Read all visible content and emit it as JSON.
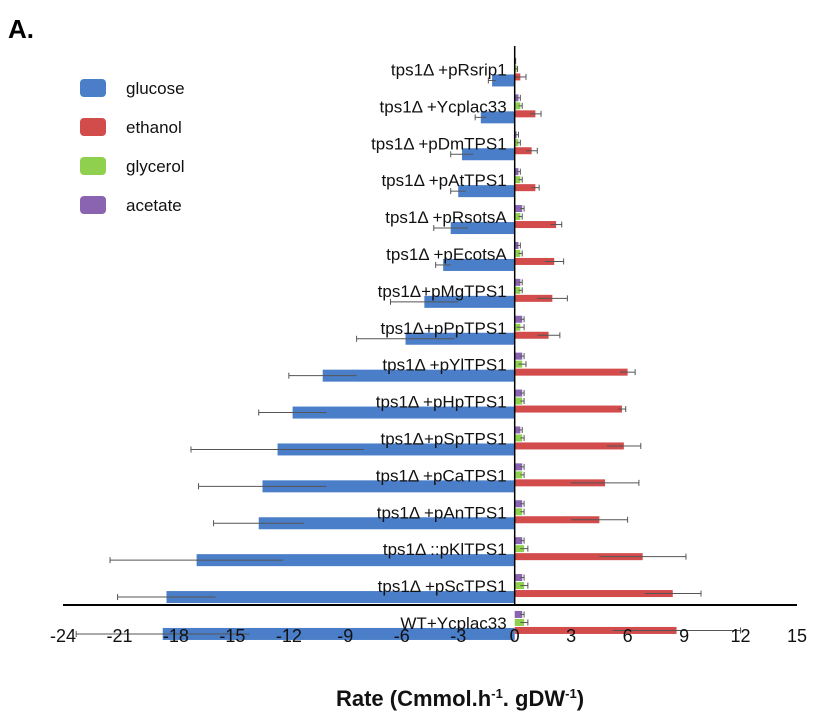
{
  "panel_label": "A.",
  "chart_data": {
    "type": "bar",
    "orientation": "horizontal",
    "xlabel": {
      "main": "Rate (Cmmol.h",
      "sup1": "-1",
      "mid": ". gDW",
      "sup2": "-1",
      "end": ")"
    },
    "xlim": [
      -24,
      15
    ],
    "xticks": [
      "-24",
      "-21",
      "-18",
      "-15",
      "-12",
      "-9",
      "-6",
      "-3",
      "0",
      "3",
      "6",
      "9",
      "12",
      "15"
    ],
    "legend_position": "top-left",
    "grid": false,
    "categories": [
      "tps1Δ +pRsrip1",
      "tps1Δ +Ycplac33",
      "tps1Δ +pDmTPS1",
      "tps1Δ +pAtTPS1",
      "tps1Δ +pRsotsA",
      "tps1Δ +pEcotsA",
      "tps1Δ+pMgTPS1",
      "tps1Δ+pPpTPS1",
      "tps1Δ +pYlTPS1",
      "tps1Δ +pHpTPS1",
      "tps1Δ+pSpTPS1",
      "tps1Δ +pCaTPS1",
      "tps1Δ +pAnTPS1",
      "tps1Δ ::pKlTPS1",
      "tps1Δ +pScTPS1",
      "WT+Ycplac33"
    ],
    "series": [
      {
        "name": "glucose",
        "color": "#4a7ec8",
        "values": [
          -1.2,
          -1.8,
          -2.8,
          -3.0,
          -3.4,
          -3.8,
          -4.8,
          -5.8,
          -10.2,
          -11.8,
          -12.6,
          -13.4,
          -13.6,
          -16.9,
          -18.5,
          -18.7
        ],
        "errors": [
          0.2,
          0.3,
          0.6,
          0.4,
          0.9,
          0.4,
          1.8,
          2.6,
          1.8,
          1.8,
          4.6,
          3.4,
          2.4,
          4.6,
          2.6,
          4.6
        ]
      },
      {
        "name": "ethanol",
        "color": "#d24c4c",
        "values": [
          0.3,
          1.1,
          0.9,
          1.1,
          2.2,
          2.1,
          2.0,
          1.8,
          6.0,
          5.7,
          5.8,
          4.8,
          4.5,
          6.8,
          8.4,
          8.6
        ],
        "errors": [
          0.3,
          0.3,
          0.3,
          0.2,
          0.3,
          0.5,
          0.8,
          0.6,
          0.4,
          0.2,
          0.9,
          1.8,
          1.5,
          2.3,
          1.5,
          3.4
        ]
      },
      {
        "name": "glycerol",
        "color": "#8fd14f",
        "values": [
          0.1,
          0.3,
          0.2,
          0.3,
          0.3,
          0.3,
          0.3,
          0.3,
          0.4,
          0.4,
          0.4,
          0.4,
          0.4,
          0.5,
          0.5,
          0.5
        ],
        "errors": [
          0.05,
          0.1,
          0.1,
          0.1,
          0.1,
          0.1,
          0.1,
          0.2,
          0.2,
          0.1,
          0.1,
          0.1,
          0.1,
          0.2,
          0.2,
          0.2
        ]
      },
      {
        "name": "acetate",
        "color": "#8a64b0",
        "values": [
          0.0,
          0.2,
          0.1,
          0.2,
          0.4,
          0.2,
          0.3,
          0.4,
          0.4,
          0.4,
          0.3,
          0.4,
          0.4,
          0.4,
          0.4,
          0.4
        ],
        "errors": [
          0.05,
          0.1,
          0.1,
          0.1,
          0.1,
          0.1,
          0.1,
          0.1,
          0.1,
          0.1,
          0.1,
          0.1,
          0.1,
          0.1,
          0.1,
          0.1
        ]
      }
    ]
  }
}
